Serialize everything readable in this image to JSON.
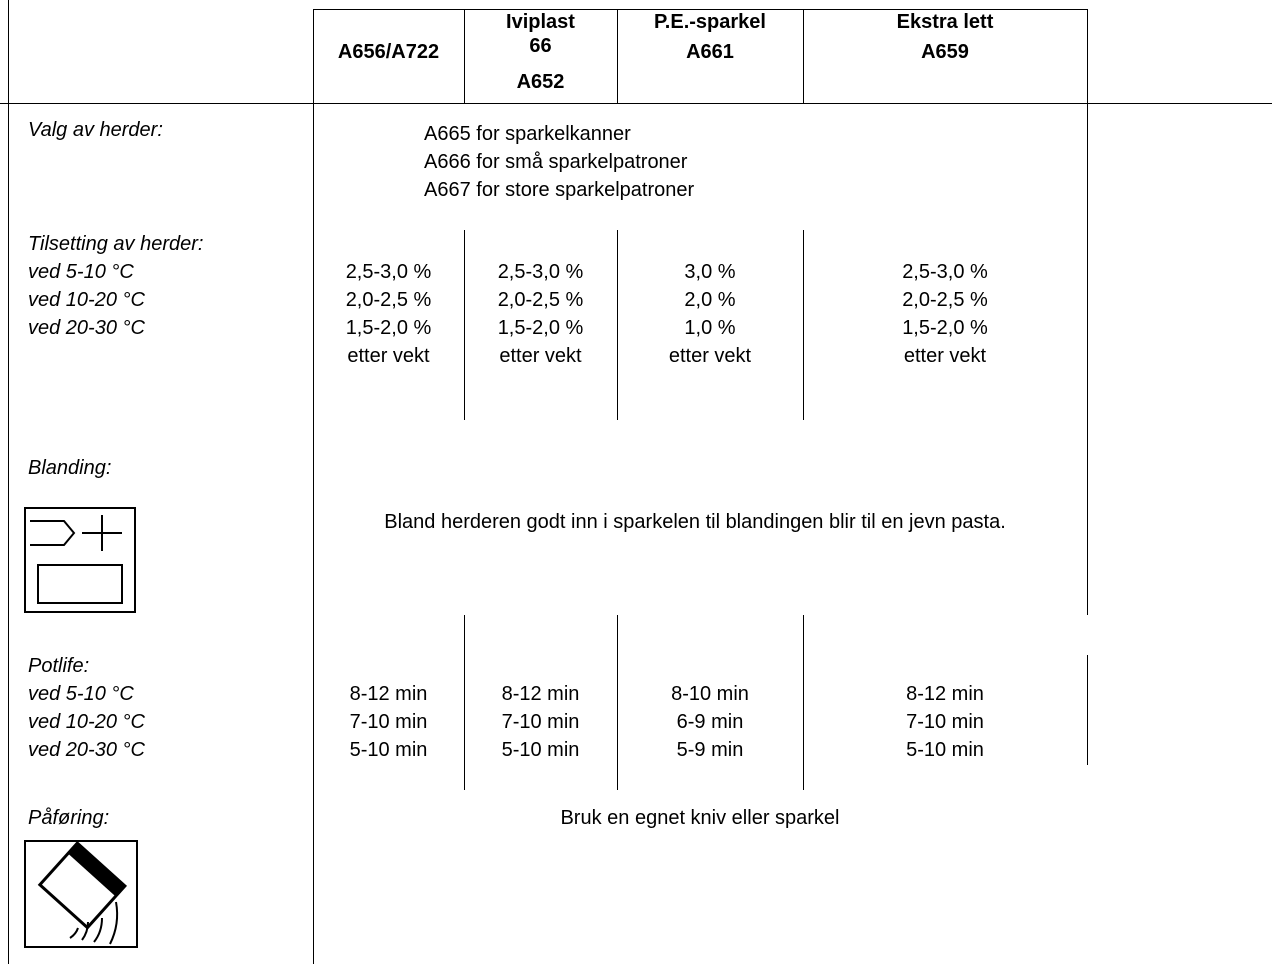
{
  "header": {
    "col1": {
      "lines": [
        "",
        "A656/A722",
        ""
      ]
    },
    "col2": {
      "lines": [
        "Iviplast",
        "66",
        "A652"
      ]
    },
    "col3": {
      "lines": [
        "P.E.-sparkel",
        "",
        "A661"
      ]
    },
    "col4": {
      "lines": [
        "Ekstra lett",
        "",
        "A659"
      ]
    }
  },
  "valg": {
    "label": "Valg av herder:",
    "lines": [
      "A665 for sparkelkanner",
      "A666 for små sparkelpatroner",
      "A667 for store sparkelpatroner"
    ]
  },
  "tilsetting": {
    "labels": [
      "Tilsetting av herder:",
      "ved 5-10 °C",
      "ved 10-20 °C",
      "ved 20-30 °C"
    ],
    "col1": [
      "2,5-3,0 %",
      "2,0-2,5 %",
      "1,5-2,0 %",
      "etter vekt"
    ],
    "col2": [
      "2,5-3,0 %",
      "2,0-2,5 %",
      "1,5-2,0 %",
      "etter vekt"
    ],
    "col3": [
      "3,0 %",
      "2,0 %",
      "1,0 %",
      "etter vekt"
    ],
    "col4": [
      "2,5-3,0 %",
      "2,0-2,5 %",
      "1,5-2,0 %",
      "etter vekt"
    ]
  },
  "blanding": {
    "label": "Blanding:",
    "text": "Bland herderen godt inn i sparkelen til blandingen blir til en jevn pasta.",
    "icon": "mixing-icon"
  },
  "potlife": {
    "labels": [
      "Potlife:",
      "ved 5-10 °C",
      "ved 10-20 °C",
      "ved 20-30 °C"
    ],
    "col1": [
      "8-12 min",
      "7-10 min",
      "5-10 min"
    ],
    "col2": [
      "8-12 min",
      "7-10 min",
      "5-10 min"
    ],
    "col3": [
      "8-10 min",
      "6-9 min",
      "5-9 min"
    ],
    "col4": [
      "8-12 min",
      "7-10 min",
      "5-10 min"
    ]
  },
  "paforing": {
    "label": "Påføring:",
    "text": "Bruk en egnet kniv eller sparkel",
    "icon": "spatula-icon"
  }
}
